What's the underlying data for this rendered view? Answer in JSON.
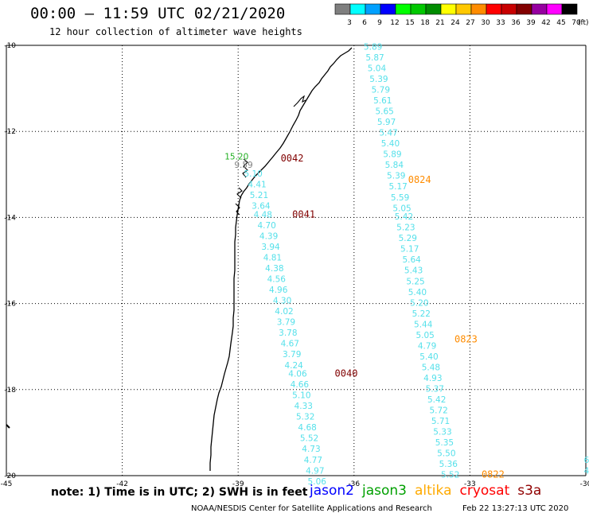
{
  "header": {
    "title": "00:00 – 11:59 UTC 02/21/2020",
    "subtitle": "12 hour collection of altimeter wave heights"
  },
  "color_scale": {
    "unit": "(ft)",
    "bins": [
      {
        "label": "3",
        "color": "#7f7f7f"
      },
      {
        "label": "6",
        "color": "#00ffff"
      },
      {
        "label": "9",
        "color": "#00a0ff"
      },
      {
        "label": "12",
        "color": "#0000ff"
      },
      {
        "label": "15",
        "color": "#00ff00"
      },
      {
        "label": "18",
        "color": "#00c800"
      },
      {
        "label": "21",
        "color": "#008c00"
      },
      {
        "label": "24",
        "color": "#ffff00"
      },
      {
        "label": "27",
        "color": "#ffc800"
      },
      {
        "label": "30",
        "color": "#ff8c00"
      },
      {
        "label": "33",
        "color": "#ff0000"
      },
      {
        "label": "36",
        "color": "#c80000"
      },
      {
        "label": "39",
        "color": "#820000"
      },
      {
        "label": "42",
        "color": "#9600a0"
      },
      {
        "label": "45",
        "color": "#ff00ff"
      },
      {
        "label": "70",
        "color": "#000000"
      }
    ]
  },
  "axes": {
    "lat_labels": [
      "-10",
      "-12",
      "-14",
      "-16",
      "-18",
      "-20"
    ],
    "lon_labels": [
      "-45",
      "-42",
      "-39",
      "-36",
      "-33",
      "-30"
    ]
  },
  "tracks": [
    {
      "satellite": "cryosat",
      "color": "#55e0ea",
      "points": [
        {
          "lat": -12.65,
          "lon": -39.35,
          "value": "15.20",
          "color": "#22b022"
        },
        {
          "lat": -12.85,
          "lon": -39.1,
          "value": "9.59",
          "color": "#808080"
        },
        {
          "lat": -13.05,
          "lon": -38.85,
          "value": "5.10"
        },
        {
          "lat": -13.3,
          "lon": -38.75,
          "value": "4.41"
        },
        {
          "lat": -13.55,
          "lon": -38.7,
          "value": "5.21"
        },
        {
          "lat": -13.8,
          "lon": -38.65,
          "value": "3.64"
        },
        {
          "lat": -14.0,
          "lon": -38.6,
          "value": "4.48"
        },
        {
          "lat": -14.25,
          "lon": -38.5,
          "value": "4.70"
        },
        {
          "lat": -14.5,
          "lon": -38.45,
          "value": "4.39"
        },
        {
          "lat": -14.75,
          "lon": -38.4,
          "value": "3.94"
        },
        {
          "lat": -15.0,
          "lon": -38.35,
          "value": "4.81"
        },
        {
          "lat": -15.25,
          "lon": -38.3,
          "value": "4.38"
        },
        {
          "lat": -15.5,
          "lon": -38.25,
          "value": "4.56"
        },
        {
          "lat": -15.75,
          "lon": -38.2,
          "value": "4.96"
        },
        {
          "lat": -16.0,
          "lon": -38.1,
          "value": "4.30"
        },
        {
          "lat": -16.25,
          "lon": -38.05,
          "value": "4.02"
        },
        {
          "lat": -16.5,
          "lon": -38.0,
          "value": "3.79"
        },
        {
          "lat": -16.75,
          "lon": -37.95,
          "value": "3.78"
        },
        {
          "lat": -17.0,
          "lon": -37.9,
          "value": "4.67"
        },
        {
          "lat": -17.25,
          "lon": -37.85,
          "value": "3.79"
        },
        {
          "lat": -17.5,
          "lon": -37.8,
          "value": "4.24"
        },
        {
          "lat": -17.7,
          "lon": -37.7,
          "value": "4.06"
        },
        {
          "lat": -17.95,
          "lon": -37.65,
          "value": "4.66"
        },
        {
          "lat": -18.2,
          "lon": -37.6,
          "value": "5.10"
        },
        {
          "lat": -18.45,
          "lon": -37.55,
          "value": "4.33"
        },
        {
          "lat": -18.7,
          "lon": -37.5,
          "value": "5.32"
        },
        {
          "lat": -18.95,
          "lon": -37.45,
          "value": "4.68"
        },
        {
          "lat": -19.2,
          "lon": -37.4,
          "value": "5.52"
        },
        {
          "lat": -19.45,
          "lon": -37.35,
          "value": "4.73"
        },
        {
          "lat": -19.7,
          "lon": -37.3,
          "value": "4.77"
        },
        {
          "lat": -19.95,
          "lon": -37.25,
          "value": "4.97"
        },
        {
          "lat": -20.2,
          "lon": -37.2,
          "value": "5.06"
        }
      ],
      "time_labels": [
        {
          "lat": -12.7,
          "lon": -37.9,
          "text": "0042"
        },
        {
          "lat": -14.0,
          "lon": -37.6,
          "text": "0041"
        },
        {
          "lat": -17.7,
          "lon": -36.5,
          "text": "0040"
        }
      ]
    },
    {
      "satellite": "altika",
      "color": "#55e0ea",
      "points": [
        {
          "lat": -10.1,
          "lon": -35.75,
          "value": "5.89"
        },
        {
          "lat": -10.35,
          "lon": -35.7,
          "value": "5.87"
        },
        {
          "lat": -10.6,
          "lon": -35.65,
          "value": "5.04"
        },
        {
          "lat": -10.85,
          "lon": -35.6,
          "value": "5.39"
        },
        {
          "lat": -11.1,
          "lon": -35.55,
          "value": "5.79"
        },
        {
          "lat": -11.35,
          "lon": -35.5,
          "value": "5.61"
        },
        {
          "lat": -11.6,
          "lon": -35.45,
          "value": "5.65"
        },
        {
          "lat": -11.85,
          "lon": -35.4,
          "value": "5.97"
        },
        {
          "lat": -12.1,
          "lon": -35.35,
          "value": "5.47"
        },
        {
          "lat": -12.35,
          "lon": -35.3,
          "value": "5.40"
        },
        {
          "lat": -12.6,
          "lon": -35.25,
          "value": "5.89"
        },
        {
          "lat": -12.85,
          "lon": -35.2,
          "value": "5.84"
        },
        {
          "lat": -13.1,
          "lon": -35.15,
          "value": "5.39"
        },
        {
          "lat": -13.35,
          "lon": -35.1,
          "value": "5.17"
        },
        {
          "lat": -13.6,
          "lon": -35.05,
          "value": "5.59"
        },
        {
          "lat": -13.85,
          "lon": -35.0,
          "value": "5.05"
        },
        {
          "lat": -14.05,
          "lon": -34.95,
          "value": "5.42"
        },
        {
          "lat": -14.3,
          "lon": -34.9,
          "value": "5.23"
        },
        {
          "lat": -14.55,
          "lon": -34.85,
          "value": "5.29"
        },
        {
          "lat": -14.8,
          "lon": -34.8,
          "value": "5.17"
        },
        {
          "lat": -15.05,
          "lon": -34.75,
          "value": "5.64"
        },
        {
          "lat": -15.3,
          "lon": -34.7,
          "value": "5.43"
        },
        {
          "lat": -15.55,
          "lon": -34.65,
          "value": "5.25"
        },
        {
          "lat": -15.8,
          "lon": -34.6,
          "value": "5.40"
        },
        {
          "lat": -16.05,
          "lon": -34.55,
          "value": "5.20"
        },
        {
          "lat": -16.3,
          "lon": -34.5,
          "value": "5.22"
        },
        {
          "lat": -16.55,
          "lon": -34.45,
          "value": "5.44"
        },
        {
          "lat": -16.8,
          "lon": -34.4,
          "value": "5.05"
        },
        {
          "lat": -17.05,
          "lon": -34.35,
          "value": "4.79"
        },
        {
          "lat": -17.3,
          "lon": -34.3,
          "value": "5.40"
        },
        {
          "lat": -17.55,
          "lon": -34.25,
          "value": "5.48"
        },
        {
          "lat": -17.8,
          "lon": -34.2,
          "value": "4.93"
        },
        {
          "lat": -18.05,
          "lon": -34.15,
          "value": "5.37"
        },
        {
          "lat": -18.3,
          "lon": -34.1,
          "value": "5.42"
        },
        {
          "lat": -18.55,
          "lon": -34.05,
          "value": "5.72"
        },
        {
          "lat": -18.8,
          "lon": -34.0,
          "value": "5.71"
        },
        {
          "lat": -19.05,
          "lon": -33.95,
          "value": "5.33"
        },
        {
          "lat": -19.3,
          "lon": -33.9,
          "value": "5.35"
        },
        {
          "lat": -19.55,
          "lon": -33.85,
          "value": "5.50"
        },
        {
          "lat": -19.8,
          "lon": -33.8,
          "value": "5.36"
        },
        {
          "lat": -20.05,
          "lon": -33.75,
          "value": "5.52"
        }
      ],
      "time_labels": [
        {
          "lat": -13.2,
          "lon": -34.6,
          "text": "0824"
        },
        {
          "lat": -16.9,
          "lon": -33.4,
          "text": "0823"
        },
        {
          "lat": -20.05,
          "lon": -32.7,
          "text": "0822"
        }
      ]
    }
  ],
  "edge_values": [
    {
      "lat": -19.7,
      "lon": -30.05,
      "value": "6"
    },
    {
      "lat": -19.95,
      "lon": -30.05,
      "value": "4"
    }
  ],
  "notes": {
    "text": "note:  1) Time is in UTC;  2) SWH is in feet"
  },
  "satellite_legend": [
    {
      "name": "jason2",
      "color": "#0000ff"
    },
    {
      "name": "jason3",
      "color": "#00a000"
    },
    {
      "name": "altika",
      "color": "#ffaa00"
    },
    {
      "name": "cryosat",
      "color": "#ff0000"
    },
    {
      "name": "s3a",
      "color": "#900000"
    }
  ],
  "time_label_color": "#800000",
  "altika_time_label_color": "#ff8c00",
  "footer": {
    "credit": "NOAA/NESDIS Center for Satellite Applications and Research",
    "timestamp": "Feb 22 13:27:13 UTC 2020"
  }
}
